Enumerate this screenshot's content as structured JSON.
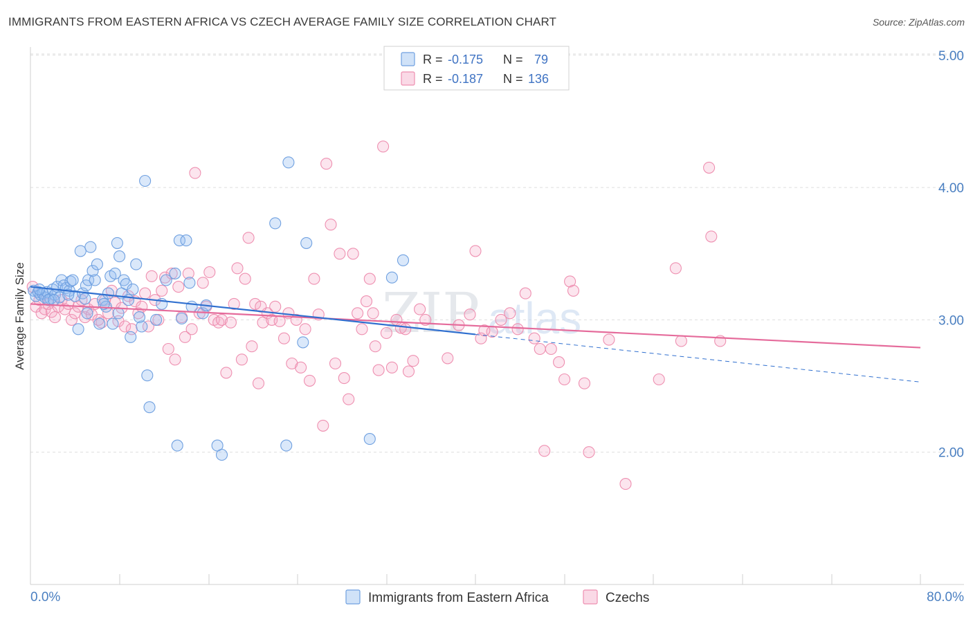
{
  "title": "IMMIGRANTS FROM EASTERN AFRICA VS CZECH AVERAGE FAMILY SIZE CORRELATION CHART",
  "source": "Source: ZipAtlas.com",
  "watermark": {
    "zip": "ZIP",
    "atlas": "atlas"
  },
  "colors": {
    "blue": "#6fa0e0",
    "blue_fill": "rgba(150,190,240,0.35)",
    "blue_line": "#2f6fcf",
    "pink": "#ee8fb0",
    "pink_fill": "rgba(245,170,200,0.30)",
    "pink_line": "#e56b9b",
    "grid": "#dedede",
    "axis_label": "#4a7fc1"
  },
  "legend": {
    "series1": {
      "r_label": "R = ",
      "r_value": "-0.175",
      "n_label": "N = ",
      "n_value": "79"
    },
    "series2": {
      "r_label": "R = ",
      "r_value": "-0.187",
      "n_label": "N = ",
      "n_value": "136"
    }
  },
  "chart_data": {
    "type": "scatter",
    "title": "IMMIGRANTS FROM EASTERN AFRICA VS CZECH AVERAGE FAMILY SIZE CORRELATION CHART",
    "xlabel": "",
    "ylabel": "Average Family Size",
    "xlim": [
      0,
      80
    ],
    "ylim": [
      1.0,
      5.15
    ],
    "x_tick_labels": [
      "0.0%",
      "80.0%"
    ],
    "y_ticks": [
      2.0,
      3.0,
      4.0,
      5.0
    ],
    "y_tick_labels": [
      "2.00",
      "3.00",
      "4.00",
      "5.00"
    ],
    "grid": true,
    "legend_position": "top-center",
    "series": [
      {
        "name": "Immigrants from Eastern Africa",
        "r": -0.175,
        "n": 79,
        "trend": {
          "x0": 0,
          "y0": 3.25,
          "x1": 40,
          "y1": 2.89,
          "dashed_to_x": 80,
          "dashed_to_y": 2.53
        },
        "points": [
          [
            0.3,
            3.22
          ],
          [
            0.5,
            3.18
          ],
          [
            0.7,
            3.21
          ],
          [
            0.9,
            3.19
          ],
          [
            1.1,
            3.2
          ],
          [
            1.3,
            3.17
          ],
          [
            1.5,
            3.21
          ],
          [
            1.8,
            3.16
          ],
          [
            2.0,
            3.23
          ],
          [
            2.2,
            3.19
          ],
          [
            2.4,
            3.25
          ],
          [
            2.6,
            3.17
          ],
          [
            2.8,
            3.3
          ],
          [
            3.0,
            3.26
          ],
          [
            3.2,
            3.24
          ],
          [
            3.5,
            3.22
          ],
          [
            3.6,
            3.29
          ],
          [
            3.8,
            3.3
          ],
          [
            4.0,
            3.18
          ],
          [
            4.3,
            2.93
          ],
          [
            4.5,
            3.52
          ],
          [
            4.7,
            3.2
          ],
          [
            5.0,
            3.26
          ],
          [
            5.2,
            3.3
          ],
          [
            5.4,
            3.55
          ],
          [
            5.6,
            3.37
          ],
          [
            5.8,
            3.3
          ],
          [
            6.0,
            3.42
          ],
          [
            6.2,
            2.97
          ],
          [
            6.5,
            3.15
          ],
          [
            6.8,
            3.1
          ],
          [
            7.0,
            3.2
          ],
          [
            7.2,
            3.33
          ],
          [
            7.4,
            2.97
          ],
          [
            7.6,
            3.35
          ],
          [
            7.8,
            3.58
          ],
          [
            8.0,
            3.48
          ],
          [
            8.2,
            3.2
          ],
          [
            8.4,
            3.3
          ],
          [
            8.6,
            3.27
          ],
          [
            8.8,
            3.15
          ],
          [
            9.0,
            2.87
          ],
          [
            9.5,
            3.42
          ],
          [
            9.8,
            3.02
          ],
          [
            10.0,
            2.95
          ],
          [
            10.3,
            4.05
          ],
          [
            10.5,
            2.58
          ],
          [
            10.7,
            2.34
          ],
          [
            11.3,
            3.0
          ],
          [
            12.2,
            3.3
          ],
          [
            13.0,
            3.35
          ],
          [
            13.2,
            2.05
          ],
          [
            13.4,
            3.6
          ],
          [
            13.6,
            3.01
          ],
          [
            14.0,
            3.6
          ],
          [
            14.3,
            3.28
          ],
          [
            14.5,
            3.1
          ],
          [
            15.5,
            3.05
          ],
          [
            15.8,
            3.11
          ],
          [
            16.8,
            2.05
          ],
          [
            17.2,
            1.98
          ],
          [
            22.0,
            3.73
          ],
          [
            23.0,
            2.05
          ],
          [
            23.2,
            4.19
          ],
          [
            24.5,
            2.83
          ],
          [
            24.8,
            3.58
          ],
          [
            30.5,
            2.1
          ],
          [
            32.5,
            3.32
          ],
          [
            33.5,
            3.45
          ],
          [
            9.2,
            3.23
          ],
          [
            1.6,
            3.15
          ],
          [
            3.4,
            3.19
          ],
          [
            6.6,
            3.12
          ],
          [
            2.1,
            3.15
          ],
          [
            4.9,
            3.16
          ],
          [
            7.9,
            3.05
          ],
          [
            11.8,
            3.12
          ],
          [
            0.8,
            3.23
          ],
          [
            5.1,
            3.05
          ]
        ]
      },
      {
        "name": "Czechs",
        "r": -0.187,
        "n": 136,
        "trend": {
          "x0": 0,
          "y0": 3.12,
          "x1": 80,
          "y1": 2.79
        },
        "points": [
          [
            0.2,
            3.25
          ],
          [
            0.5,
            3.1
          ],
          [
            0.8,
            3.15
          ],
          [
            1.0,
            3.05
          ],
          [
            1.3,
            3.08
          ],
          [
            1.6,
            3.12
          ],
          [
            1.9,
            3.06
          ],
          [
            2.2,
            3.02
          ],
          [
            2.5,
            3.1
          ],
          [
            2.8,
            3.15
          ],
          [
            3.1,
            3.08
          ],
          [
            3.4,
            3.12
          ],
          [
            3.7,
            3.0
          ],
          [
            4.0,
            3.05
          ],
          [
            4.3,
            3.1
          ],
          [
            4.6,
            3.15
          ],
          [
            4.9,
            3.02
          ],
          [
            5.2,
            3.08
          ],
          [
            5.5,
            3.04
          ],
          [
            5.8,
            3.12
          ],
          [
            6.1,
            3.0
          ],
          [
            6.4,
            2.98
          ],
          [
            6.7,
            3.15
          ],
          [
            7.0,
            3.05
          ],
          [
            7.3,
            3.22
          ],
          [
            7.6,
            3.13
          ],
          [
            7.9,
            2.99
          ],
          [
            8.2,
            3.09
          ],
          [
            8.5,
            2.95
          ],
          [
            8.8,
            3.18
          ],
          [
            9.1,
            2.93
          ],
          [
            9.4,
            3.14
          ],
          [
            9.7,
            3.05
          ],
          [
            10.0,
            3.1
          ],
          [
            10.3,
            3.2
          ],
          [
            10.6,
            2.95
          ],
          [
            10.9,
            3.33
          ],
          [
            11.2,
            3.15
          ],
          [
            11.5,
            3.0
          ],
          [
            11.8,
            3.22
          ],
          [
            12.1,
            3.32
          ],
          [
            12.4,
            2.78
          ],
          [
            12.7,
            3.35
          ],
          [
            13.0,
            2.7
          ],
          [
            13.3,
            3.25
          ],
          [
            13.6,
            3.02
          ],
          [
            13.9,
            2.87
          ],
          [
            14.2,
            3.35
          ],
          [
            14.5,
            2.93
          ],
          [
            14.8,
            4.11
          ],
          [
            15.2,
            3.05
          ],
          [
            15.5,
            3.28
          ],
          [
            15.8,
            3.1
          ],
          [
            16.1,
            3.36
          ],
          [
            16.5,
            3.0
          ],
          [
            16.9,
            2.98
          ],
          [
            17.2,
            3.0
          ],
          [
            17.6,
            2.6
          ],
          [
            18.0,
            2.98
          ],
          [
            18.3,
            3.12
          ],
          [
            18.6,
            3.39
          ],
          [
            19.0,
            2.7
          ],
          [
            19.3,
            3.31
          ],
          [
            19.6,
            3.62
          ],
          [
            19.9,
            2.8
          ],
          [
            20.2,
            3.12
          ],
          [
            20.5,
            2.52
          ],
          [
            20.9,
            2.98
          ],
          [
            21.3,
            3.05
          ],
          [
            21.7,
            3.0
          ],
          [
            22.0,
            3.1
          ],
          [
            22.4,
            2.99
          ],
          [
            22.8,
            2.86
          ],
          [
            23.2,
            3.05
          ],
          [
            23.5,
            2.67
          ],
          [
            23.9,
            3.0
          ],
          [
            24.3,
            2.64
          ],
          [
            24.7,
            2.93
          ],
          [
            25.1,
            2.54
          ],
          [
            25.5,
            3.31
          ],
          [
            25.9,
            3.04
          ],
          [
            26.3,
            2.2
          ],
          [
            26.6,
            4.18
          ],
          [
            27.0,
            3.72
          ],
          [
            27.4,
            2.67
          ],
          [
            27.8,
            3.5
          ],
          [
            28.2,
            2.56
          ],
          [
            28.6,
            2.4
          ],
          [
            29.0,
            3.5
          ],
          [
            29.4,
            3.05
          ],
          [
            29.8,
            2.93
          ],
          [
            30.2,
            3.14
          ],
          [
            30.5,
            3.31
          ],
          [
            31.0,
            2.8
          ],
          [
            31.3,
            2.62
          ],
          [
            31.7,
            4.31
          ],
          [
            32.0,
            2.9
          ],
          [
            32.5,
            2.64
          ],
          [
            32.9,
            3.0
          ],
          [
            33.3,
            2.94
          ],
          [
            33.7,
            2.93
          ],
          [
            34.0,
            2.61
          ],
          [
            34.4,
            2.69
          ],
          [
            35.0,
            3.08
          ],
          [
            35.5,
            3.0
          ],
          [
            37.5,
            2.71
          ],
          [
            38.5,
            2.96
          ],
          [
            39.5,
            3.04
          ],
          [
            40.0,
            3.52
          ],
          [
            40.5,
            2.86
          ],
          [
            41.5,
            2.91
          ],
          [
            42.3,
            3.0
          ],
          [
            43.1,
            3.05
          ],
          [
            43.8,
            2.93
          ],
          [
            44.5,
            3.2
          ],
          [
            45.3,
            2.86
          ],
          [
            45.8,
            2.78
          ],
          [
            46.2,
            2.01
          ],
          [
            46.8,
            2.78
          ],
          [
            47.5,
            2.68
          ],
          [
            48.0,
            2.55
          ],
          [
            48.5,
            3.29
          ],
          [
            48.8,
            3.22
          ],
          [
            49.8,
            2.52
          ],
          [
            50.2,
            2.0
          ],
          [
            52.0,
            2.85
          ],
          [
            53.5,
            1.76
          ],
          [
            56.5,
            2.55
          ],
          [
            58.0,
            3.39
          ],
          [
            58.5,
            2.84
          ],
          [
            61.0,
            4.15
          ],
          [
            61.2,
            3.63
          ],
          [
            62.0,
            2.84
          ],
          [
            40.8,
            2.92
          ],
          [
            30.8,
            3.05
          ],
          [
            20.7,
            3.1
          ]
        ]
      }
    ]
  },
  "bottom_legend": {
    "item1": "Immigrants from Eastern Africa",
    "item2": "Czechs"
  }
}
